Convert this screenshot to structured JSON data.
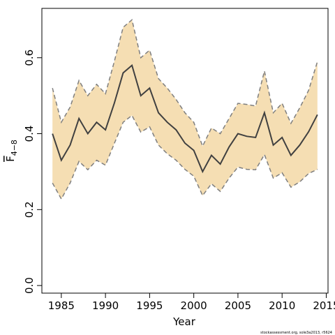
{
  "chart_data": {
    "type": "line",
    "xlabel": "Year",
    "ylabel": "F",
    "ylabel_subscript": "4−8",
    "footnote": "stockassessment.org, sole3a2013, r5624",
    "x": [
      1984,
      1985,
      1986,
      1987,
      1988,
      1989,
      1990,
      1991,
      1992,
      1993,
      1994,
      1995,
      1996,
      1997,
      1998,
      1999,
      2000,
      2001,
      2002,
      2003,
      2004,
      2005,
      2006,
      2007,
      2008,
      2009,
      2010,
      2011,
      2012,
      2013,
      2014
    ],
    "values": [
      0.4,
      0.33,
      0.37,
      0.44,
      0.4,
      0.43,
      0.41,
      0.48,
      0.56,
      0.58,
      0.5,
      0.52,
      0.455,
      0.43,
      0.41,
      0.375,
      0.356,
      0.3,
      0.343,
      0.32,
      0.365,
      0.4,
      0.393,
      0.39,
      0.455,
      0.37,
      0.39,
      0.343,
      0.37,
      0.405,
      0.45
    ],
    "upper": [
      0.52,
      0.43,
      0.47,
      0.54,
      0.5,
      0.53,
      0.505,
      0.59,
      0.68,
      0.7,
      0.6,
      0.62,
      0.545,
      0.52,
      0.49,
      0.455,
      0.43,
      0.367,
      0.415,
      0.4,
      0.44,
      0.48,
      0.477,
      0.473,
      0.565,
      0.455,
      0.48,
      0.427,
      0.468,
      0.514,
      0.59
    ],
    "lower": [
      0.27,
      0.228,
      0.27,
      0.327,
      0.305,
      0.33,
      0.317,
      0.374,
      0.43,
      0.448,
      0.404,
      0.418,
      0.37,
      0.347,
      0.33,
      0.306,
      0.288,
      0.237,
      0.268,
      0.248,
      0.283,
      0.312,
      0.306,
      0.305,
      0.345,
      0.283,
      0.297,
      0.259,
      0.273,
      0.295,
      0.306
    ],
    "color": "#404040",
    "band_color": "#f5deb3",
    "bound_color": "#7f7f7f",
    "xlim": [
      1982.8,
      2015.2
    ],
    "ylim": [
      -0.02,
      0.73
    ],
    "xticks": [
      1985,
      1990,
      1995,
      2000,
      2005,
      2010,
      2015
    ],
    "yticks": [
      {
        "value": 0,
        "label": "0.0"
      },
      0.2,
      0.4,
      0.6
    ]
  }
}
